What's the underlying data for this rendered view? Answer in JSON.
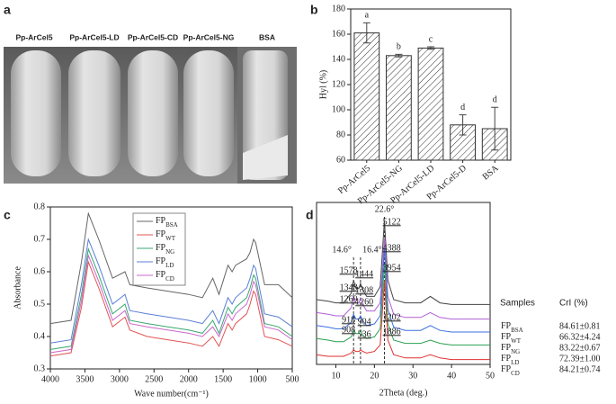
{
  "photo": {
    "panel": "a",
    "labels": [
      "Pp-ArCel5",
      "Pp-ArCel5-LD",
      "Pp-ArCel5-CD",
      "Pp-ArCel5-NG",
      "BSA"
    ]
  },
  "chart_data": [
    {
      "type": "bar",
      "panel": "b",
      "y_label": "Hyl (%)",
      "categories": [
        "Pp-ArCel5",
        "Pp-ArCel5-NG",
        "Pp-ArCel5-LD",
        "Pp-ArCel5-D",
        "BSA"
      ],
      "values": [
        161,
        143,
        149,
        88,
        85
      ],
      "errors": [
        8,
        1,
        1,
        8,
        17
      ],
      "letters": [
        "a",
        "b",
        "c",
        "d",
        "d"
      ],
      "color": "#333333",
      "ylim": [
        60,
        180
      ],
      "yticks": [
        60,
        80,
        100,
        120,
        140,
        160,
        180
      ]
    },
    {
      "type": "line",
      "panel": "c",
      "x_label": "Wave number(cm⁻¹)",
      "y_label": "Absorbance",
      "x": [
        4000,
        3700,
        3550,
        3450,
        3300,
        3100,
        2920,
        2850,
        2600,
        2300,
        2000,
        1800,
        1650,
        1560,
        1430,
        1370,
        1320,
        1160,
        1110,
        1060,
        1030,
        900,
        700,
        500
      ],
      "series": [
        {
          "name": "FP",
          "subscript": "BSA",
          "color": "#666666",
          "values": [
            0.44,
            0.45,
            0.63,
            0.78,
            0.7,
            0.58,
            0.6,
            0.56,
            0.55,
            0.54,
            0.53,
            0.52,
            0.58,
            0.53,
            0.62,
            0.6,
            0.62,
            0.64,
            0.66,
            0.7,
            0.69,
            0.56,
            0.56,
            0.52
          ]
        },
        {
          "name": "FP",
          "subscript": "WT",
          "color": "#e05555",
          "values": [
            0.34,
            0.35,
            0.49,
            0.63,
            0.55,
            0.43,
            0.46,
            0.42,
            0.4,
            0.39,
            0.38,
            0.37,
            0.4,
            0.37,
            0.44,
            0.42,
            0.44,
            0.47,
            0.5,
            0.54,
            0.53,
            0.4,
            0.39,
            0.37
          ]
        },
        {
          "name": "FP",
          "subscript": "NG",
          "color": "#3aa870",
          "values": [
            0.36,
            0.37,
            0.53,
            0.67,
            0.59,
            0.47,
            0.5,
            0.45,
            0.44,
            0.43,
            0.42,
            0.41,
            0.45,
            0.41,
            0.49,
            0.47,
            0.49,
            0.52,
            0.55,
            0.59,
            0.58,
            0.44,
            0.43,
            0.4
          ]
        },
        {
          "name": "FP",
          "subscript": "LD",
          "color": "#5a7fd6",
          "values": [
            0.38,
            0.39,
            0.56,
            0.7,
            0.62,
            0.5,
            0.53,
            0.48,
            0.47,
            0.46,
            0.45,
            0.44,
            0.48,
            0.44,
            0.52,
            0.5,
            0.52,
            0.55,
            0.58,
            0.62,
            0.61,
            0.47,
            0.46,
            0.43
          ]
        },
        {
          "name": "FP",
          "subscript": "CD",
          "color": "#cc66cc",
          "values": [
            0.35,
            0.36,
            0.51,
            0.65,
            0.57,
            0.45,
            0.48,
            0.44,
            0.43,
            0.42,
            0.41,
            0.4,
            0.43,
            0.4,
            0.47,
            0.45,
            0.47,
            0.5,
            0.53,
            0.57,
            0.56,
            0.43,
            0.42,
            0.39
          ]
        }
      ],
      "xlim": [
        4000,
        500
      ],
      "xticks": [
        4000,
        3500,
        3000,
        2500,
        2000,
        1500,
        1000,
        500
      ],
      "ylim": [
        0.3,
        0.8
      ],
      "yticks": [
        0.3,
        0.4,
        0.5,
        0.6,
        0.7,
        0.8
      ]
    },
    {
      "type": "xrd",
      "panel": "d",
      "x_label": "2Theta (deg.)",
      "table_header": [
        "Samples",
        "CrI (%)"
      ],
      "x": [
        5,
        8,
        10,
        12,
        14,
        14.6,
        15.2,
        16,
        16.4,
        17,
        18,
        20,
        21.5,
        22.6,
        23.5,
        25,
        28,
        32,
        34.5,
        37,
        40,
        45,
        50
      ],
      "series": [
        {
          "name": "FP",
          "subscript": "BSA",
          "cri": "84.61±0.81",
          "color": "#444444",
          "values": [
            40,
            39,
            38,
            38,
            44,
            52,
            47,
            47,
            50,
            46,
            42,
            42,
            48,
            89,
            52,
            40,
            38,
            38,
            42,
            38,
            37,
            37,
            37
          ]
        },
        {
          "name": "FP",
          "subscript": "WT",
          "cri": "66.32±4.24",
          "color": "#b35fd6",
          "values": [
            32,
            31,
            30,
            30,
            35,
            42,
            38,
            38,
            41,
            37,
            33,
            33,
            38,
            78,
            42,
            31,
            29,
            29,
            32,
            29,
            28,
            28,
            28
          ]
        },
        {
          "name": "FP",
          "subscript": "NG",
          "cri": "83.22±0.67",
          "color": "#3b6fe0",
          "values": [
            24,
            23,
            22,
            22,
            26,
            31,
            28,
            28,
            30,
            27,
            24,
            25,
            30,
            72,
            34,
            23,
            21,
            21,
            24,
            21,
            20,
            20,
            20
          ]
        },
        {
          "name": "FP",
          "subscript": "LD",
          "cri": "72.39±1.00",
          "color": "#2aa050",
          "values": [
            16,
            15,
            14,
            14,
            17,
            21,
            19,
            19,
            21,
            18,
            16,
            17,
            22,
            62,
            25,
            15,
            13,
            13,
            15,
            13,
            12,
            12,
            12
          ]
        },
        {
          "name": "FP",
          "subscript": "CD",
          "cri": "84.21±0.74",
          "color": "#e03030",
          "values": [
            6,
            5,
            5,
            5,
            7,
            9,
            8,
            8,
            9,
            8,
            7,
            8,
            12,
            52,
            15,
            6,
            4,
            4,
            6,
            4,
            3,
            3,
            3
          ]
        }
      ],
      "peak_lines": [
        {
          "value": 14.6,
          "label": "14.6°"
        },
        {
          "value": 16.4,
          "label": "16.4°"
        },
        {
          "value": 22.6,
          "label": "22.6°"
        }
      ],
      "peak_labels": [
        1578,
        1444,
        1348,
        1308,
        1269,
        1260,
        5122,
        4388,
        3954,
        1202,
        1886,
        918,
        904,
        908,
        536
      ],
      "xlim": [
        5,
        50
      ],
      "xticks": [
        10,
        20,
        30,
        40,
        50
      ],
      "ylim": [
        0,
        100
      ]
    }
  ]
}
